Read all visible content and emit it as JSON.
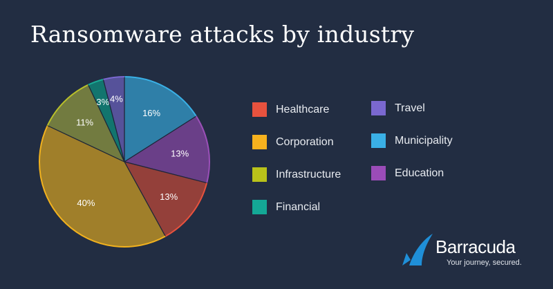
{
  "chart_data": {
    "type": "pie",
    "title": "Ransomware attacks by industry",
    "slices": [
      {
        "label": "Municipality",
        "value": 16,
        "color": "#2f7fa8",
        "edge": "#3ab0e6"
      },
      {
        "label": "Education",
        "value": 13,
        "color": "#6a3f88",
        "edge": "#9b50b8"
      },
      {
        "label": "Healthcare",
        "value": 13,
        "color": "#94403a",
        "edge": "#e8523e"
      },
      {
        "label": "Corporation",
        "value": 40,
        "color": "#a07f2a",
        "edge": "#f2b21e"
      },
      {
        "label": "Infrastructure",
        "value": 11,
        "color": "#727b40",
        "edge": "#b9c02a"
      },
      {
        "label": "Financial",
        "value": 3,
        "color": "#12756e",
        "edge": "#1aaa96"
      },
      {
        "label": "Travel",
        "value": 4,
        "color": "#56529a",
        "edge": "#7a68d0"
      }
    ],
    "legend": [
      {
        "label": "Healthcare",
        "color": "#e8523e"
      },
      {
        "label": "Corporation",
        "color": "#f7b21e"
      },
      {
        "label": "Infrastructure",
        "color": "#b9c21a"
      },
      {
        "label": "Financial",
        "color": "#14a896"
      },
      {
        "label": "Travel",
        "color": "#7a68d0"
      },
      {
        "label": "Municipality",
        "color": "#3ab0e6"
      },
      {
        "label": "Education",
        "color": "#9b4cb8"
      }
    ],
    "legend_position": "right"
  },
  "header": {
    "title": "Ransomware attacks by industry"
  },
  "brand": {
    "name": "Barracuda",
    "tagline": "Your journey, secured.",
    "color": "#1f8fd8"
  }
}
